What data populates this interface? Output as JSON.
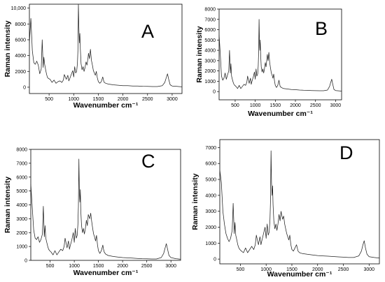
{
  "figure": {
    "background": "#ffffff",
    "line_color": "#222222"
  },
  "chart_data": [
    {
      "type": "line",
      "panel_letter": "A",
      "xlabel": "Wavenumber cm⁻¹",
      "ylabel": "Raman intensity",
      "xlim": [
        100,
        3200
      ],
      "ylim": [
        -800,
        10500
      ],
      "xticks": [
        500,
        1000,
        1500,
        2000,
        2500,
        3000
      ],
      "yticks": [
        0,
        2000,
        4000,
        6000,
        8000,
        10000
      ],
      "ytick_labels": [
        "0",
        "2000",
        "4000",
        "6000",
        "8000",
        "10,000"
      ],
      "series": [
        {
          "x": [
            100,
            130,
            160,
            190,
            220,
            250,
            280,
            310,
            340,
            360,
            380,
            395,
            410,
            430,
            450,
            470,
            490,
            520,
            560,
            600,
            640,
            680,
            720,
            760,
            790,
            810,
            850,
            880,
            900,
            920,
            950,
            980,
            1000,
            1020,
            1040,
            1060,
            1075,
            1085,
            1095,
            1105,
            1115,
            1125,
            1135,
            1150,
            1170,
            1190,
            1210,
            1230,
            1250,
            1270,
            1290,
            1300,
            1320,
            1340,
            1360,
            1380,
            1400,
            1420,
            1440,
            1460,
            1480,
            1500,
            1530,
            1560,
            1590,
            1605,
            1620,
            1650,
            1700,
            1800,
            1900,
            2000,
            2100,
            2200,
            2300,
            2400,
            2500,
            2600,
            2700,
            2800,
            2850,
            2880,
            2905,
            2930,
            2960,
            3000,
            3100,
            3200
          ],
          "y": [
            5600,
            8700,
            4600,
            3100,
            2900,
            3300,
            2800,
            1700,
            2300,
            6000,
            2500,
            3800,
            2900,
            2200,
            1600,
            1200,
            1100,
            1000,
            600,
            900,
            500,
            700,
            800,
            600,
            900,
            1600,
            1000,
            1500,
            800,
            1100,
            1600,
            2100,
            1300,
            2600,
            1800,
            2000,
            3000,
            4600,
            10500,
            7500,
            5600,
            6800,
            4800,
            3000,
            2200,
            2600,
            2000,
            2500,
            3200,
            2800,
            3700,
            4300,
            3600,
            4800,
            3400,
            2800,
            2100,
            1800,
            1500,
            2000,
            1200,
            700,
            500,
            700,
            1300,
            900,
            600,
            500,
            400,
            300,
            250,
            200,
            200,
            150,
            150,
            120,
            100,
            80,
            80,
            200,
            600,
            1200,
            1700,
            1000,
            300,
            150,
            100,
            50
          ]
        }
      ]
    },
    {
      "type": "line",
      "panel_letter": "B",
      "xlabel": "Wavenumber cm⁻¹",
      "ylabel": "Raman intensity",
      "xlim": [
        100,
        3150
      ],
      "ylim": [
        -800,
        8000
      ],
      "xticks": [
        500,
        1000,
        1500,
        2000,
        2500,
        3000
      ],
      "yticks": [
        0,
        1000,
        2000,
        3000,
        4000,
        5000,
        6000,
        7000,
        8000
      ],
      "ytick_labels": [
        "0",
        "1000",
        "2000",
        "3000",
        "4000",
        "5000",
        "6000",
        "7000",
        "8000"
      ],
      "series": [
        {
          "x": [
            100,
            130,
            160,
            190,
            220,
            250,
            280,
            310,
            340,
            360,
            380,
            395,
            410,
            430,
            450,
            470,
            490,
            520,
            560,
            600,
            640,
            680,
            720,
            760,
            790,
            810,
            850,
            880,
            900,
            920,
            950,
            980,
            1000,
            1020,
            1040,
            1060,
            1075,
            1085,
            1095,
            1105,
            1115,
            1125,
            1135,
            1150,
            1170,
            1190,
            1210,
            1230,
            1250,
            1270,
            1290,
            1300,
            1320,
            1340,
            1360,
            1380,
            1400,
            1420,
            1440,
            1460,
            1480,
            1500,
            1530,
            1560,
            1590,
            1605,
            1620,
            1650,
            1700,
            1800,
            1900,
            2000,
            2100,
            2200,
            2300,
            2400,
            2500,
            2600,
            2700,
            2800,
            2850,
            2880,
            2905,
            2930,
            2960,
            3000,
            3100,
            3150
          ],
          "y": [
            5500,
            3600,
            1500,
            1100,
            1300,
            1800,
            1200,
            1600,
            2000,
            4000,
            1800,
            2700,
            1500,
            1200,
            900,
            700,
            600,
            500,
            300,
            600,
            300,
            500,
            700,
            600,
            900,
            1500,
            800,
            1300,
            700,
            1000,
            1400,
            1900,
            1200,
            2200,
            1500,
            1700,
            2500,
            3800,
            7000,
            4800,
            4000,
            5000,
            3500,
            2400,
            1900,
            2200,
            1800,
            2200,
            2800,
            2400,
            3200,
            3600,
            3000,
            3800,
            2800,
            2300,
            1800,
            1600,
            1300,
            1700,
            1000,
            600,
            400,
            600,
            1100,
            800,
            500,
            400,
            300,
            250,
            200,
            180,
            150,
            130,
            120,
            100,
            90,
            80,
            80,
            150,
            500,
            900,
            1200,
            700,
            200,
            100,
            60,
            40
          ]
        }
      ]
    },
    {
      "type": "line",
      "panel_letter": "C",
      "xlabel": "Wavenumber cm⁻¹",
      "ylabel": "Raman intensity",
      "xlim": [
        100,
        3200
      ],
      "ylim": [
        0,
        8000
      ],
      "xticks": [
        500,
        1000,
        1500,
        2000,
        2500,
        3000
      ],
      "yticks": [
        0,
        1000,
        2000,
        3000,
        4000,
        5000,
        6000,
        7000,
        8000
      ],
      "ytick_labels": [
        "0",
        "1000",
        "2000",
        "3000",
        "4000",
        "5000",
        "6000",
        "7000",
        "8000"
      ],
      "series": [
        {
          "x": [
            100,
            130,
            160,
            190,
            220,
            250,
            280,
            310,
            340,
            360,
            380,
            395,
            410,
            430,
            450,
            470,
            490,
            520,
            560,
            600,
            640,
            680,
            720,
            760,
            790,
            810,
            850,
            880,
            900,
            920,
            950,
            980,
            1000,
            1020,
            1040,
            1060,
            1075,
            1085,
            1095,
            1105,
            1115,
            1125,
            1135,
            1150,
            1170,
            1190,
            1210,
            1230,
            1250,
            1270,
            1290,
            1300,
            1320,
            1340,
            1360,
            1380,
            1400,
            1420,
            1440,
            1460,
            1480,
            1500,
            1530,
            1560,
            1590,
            1605,
            1620,
            1650,
            1700,
            1800,
            1900,
            2000,
            2100,
            2200,
            2300,
            2400,
            2500,
            2600,
            2700,
            2800,
            2850,
            2880,
            2905,
            2930,
            2960,
            3000,
            3100,
            3200
          ],
          "y": [
            5500,
            3800,
            2200,
            1600,
            1500,
            1700,
            1300,
            1500,
            1900,
            3900,
            1700,
            2500,
            1600,
            1300,
            1000,
            800,
            700,
            600,
            400,
            700,
            400,
            600,
            800,
            700,
            1000,
            1600,
            900,
            1400,
            800,
            1100,
            1500,
            2000,
            1300,
            2300,
            1600,
            1800,
            2600,
            3900,
            7300,
            5000,
            4200,
            5100,
            3600,
            2500,
            2000,
            2300,
            1900,
            2300,
            2900,
            2500,
            3300,
            3200,
            3000,
            3400,
            2800,
            2300,
            1900,
            1700,
            1400,
            1800,
            1100,
            700,
            500,
            700,
            1100,
            800,
            600,
            450,
            350,
            280,
            240,
            200,
            180,
            160,
            140,
            120,
            110,
            100,
            100,
            200,
            500,
            900,
            1200,
            800,
            350,
            200,
            120,
            80
          ]
        }
      ]
    },
    {
      "type": "line",
      "panel_letter": "D",
      "xlabel": "Wavenumber cm⁻¹",
      "ylabel": "Raman intensity",
      "xlim": [
        100,
        3200
      ],
      "ylim": [
        -300,
        7500
      ],
      "xticks": [
        500,
        1000,
        1500,
        2000,
        2500,
        3000
      ],
      "yticks": [
        0,
        1000,
        2000,
        3000,
        4000,
        5000,
        6000,
        7000
      ],
      "ytick_labels": [
        "0",
        "1000",
        "2000",
        "3000",
        "4000",
        "5000",
        "6000",
        "7000"
      ],
      "series": [
        {
          "x": [
            100,
            130,
            160,
            190,
            220,
            250,
            280,
            310,
            340,
            360,
            380,
            395,
            410,
            430,
            450,
            470,
            490,
            520,
            560,
            600,
            640,
            680,
            720,
            760,
            790,
            810,
            850,
            880,
            900,
            920,
            950,
            980,
            1000,
            1020,
            1040,
            1060,
            1075,
            1085,
            1095,
            1105,
            1115,
            1125,
            1135,
            1150,
            1170,
            1190,
            1210,
            1230,
            1250,
            1270,
            1290,
            1300,
            1320,
            1340,
            1360,
            1380,
            1400,
            1420,
            1440,
            1460,
            1480,
            1500,
            1530,
            1560,
            1590,
            1605,
            1620,
            1650,
            1700,
            1800,
            1900,
            2000,
            2100,
            2200,
            2300,
            2400,
            2500,
            2600,
            2700,
            2800,
            2850,
            2880,
            2905,
            2930,
            2960,
            3000,
            3100,
            3200
          ],
          "y": [
            5600,
            4800,
            3000,
            2200,
            1600,
            1300,
            1100,
            1300,
            1800,
            3500,
            1600,
            2300,
            1500,
            1200,
            900,
            700,
            600,
            500,
            400,
            700,
            400,
            600,
            800,
            600,
            900,
            1500,
            900,
            1400,
            900,
            1200,
            1600,
            2000,
            1300,
            2200,
            1500,
            1700,
            2500,
            3600,
            6800,
            4800,
            4000,
            4600,
            3400,
            2400,
            1900,
            2200,
            1800,
            2200,
            2800,
            2400,
            3000,
            2800,
            2500,
            2700,
            2200,
            1900,
            1600,
            1400,
            1200,
            1500,
            900,
            600,
            500,
            700,
            900,
            700,
            500,
            400,
            350,
            300,
            260,
            220,
            200,
            180,
            160,
            140,
            120,
            100,
            100,
            200,
            500,
            900,
            1150,
            700,
            300,
            150,
            100,
            60
          ]
        }
      ]
    }
  ]
}
